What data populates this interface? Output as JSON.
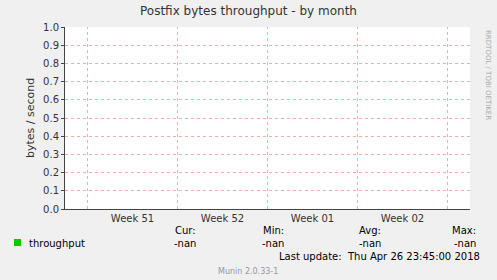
{
  "chart_data": {
    "type": "line",
    "title": "Postfix bytes throughput - by month",
    "y_label": "bytes / second",
    "categories": [
      null,
      "Week 51",
      null,
      "Week 52",
      null,
      "Week 01",
      null,
      "Week 02",
      null
    ],
    "series": [
      {
        "name": "throughput",
        "color": "#00cc00",
        "values": [
          null,
          null,
          null,
          null,
          null,
          null,
          null,
          null,
          null
        ]
      }
    ],
    "ylim": [
      0,
      1
    ],
    "yticks": [
      {
        "value": 0,
        "label": "0.0"
      },
      0.1,
      0.2,
      0.3,
      0.4,
      0.5,
      0.6,
      0.7,
      0.8,
      0.9,
      {
        "value": 1,
        "label": "1.0"
      }
    ],
    "grid": true,
    "stats_headers": [
      "Cur:",
      "Min:",
      "Avg:",
      "Max:"
    ],
    "stats_values": [
      "-nan",
      "-nan",
      "-nan",
      "-nan"
    ],
    "last_update": "Last update:  Thu Apr 26 23:45:00 2018",
    "footer": "Munin 2.0.33-1",
    "watermark": "RRDTOOL / TOBI OETIKER"
  }
}
